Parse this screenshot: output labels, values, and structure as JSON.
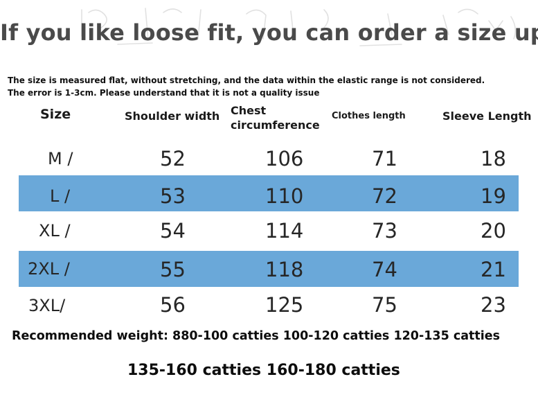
{
  "headline": "If you like loose fit, you can order a size up",
  "notes": [
    "The size is measured flat, without stretching, and the data within the elastic range is not considered.",
    "The error is 1-3cm. Please understand that it is not a quality issue"
  ],
  "table": {
    "headers": {
      "size": "Size",
      "shoulder": "Shoulder width",
      "chest_line1": "Chest",
      "chest_line2": "circumference",
      "length": "Clothes length",
      "sleeve": "Sleeve Length"
    },
    "rows": [
      {
        "size": "M /",
        "shoulder": "52",
        "chest": "106",
        "length": "71",
        "sleeve": "18"
      },
      {
        "size": "L /",
        "shoulder": "53",
        "chest": "110",
        "length": "72",
        "sleeve": "19"
      },
      {
        "size": "XL /",
        "shoulder": "54",
        "chest": "114",
        "length": "73",
        "sleeve": "20"
      },
      {
        "size": "2XL /",
        "shoulder": "55",
        "chest": "118",
        "length": "74",
        "sleeve": "21"
      },
      {
        "size": "3XL/",
        "shoulder": "56",
        "chest": "125",
        "length": "75",
        "sleeve": "23"
      }
    ],
    "highlight_color": "#6aa8d9"
  },
  "footer": {
    "line1": "Recommended weight: 880-100 catties 100-120 catties 120-135 catties",
    "line2": "135-160 catties 160-180 catties"
  }
}
